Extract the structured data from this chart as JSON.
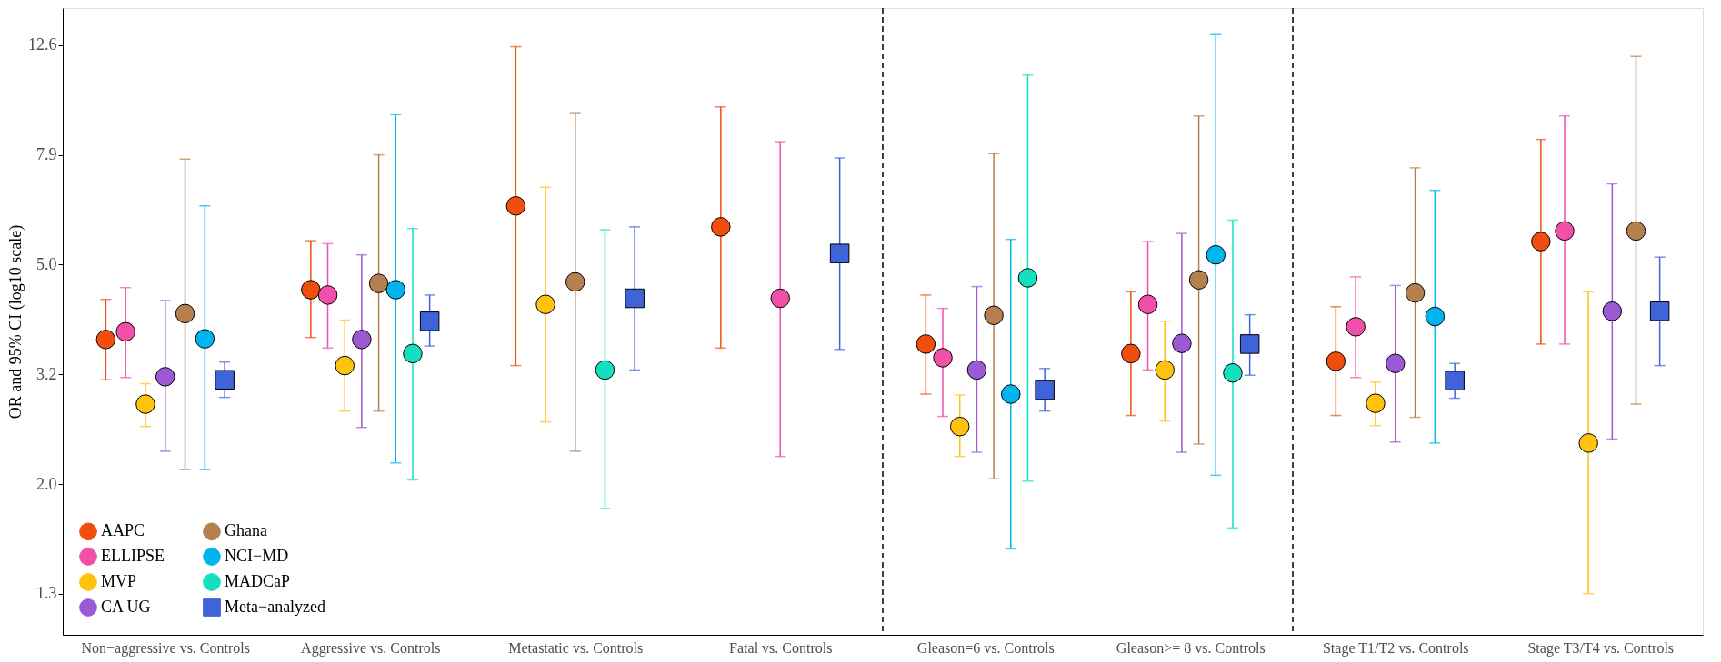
{
  "chart_data": {
    "type": "scatter",
    "ylabel": "OR and 95% CI (log10 scale)",
    "log": "y",
    "grid": false,
    "legend": "bottom left",
    "marker": "circle",
    "categories": [
      "Non−aggressive vs. Controls",
      "Aggressive vs. Controls",
      "Metastatic vs. Controls",
      "Fatal vs. Controls",
      "Gleason=6 vs. Controls",
      "Gleason>= 8 vs. Controls",
      "Stage T1/T2 vs. Controls",
      "Stage T3/T4 vs. Controls"
    ],
    "ylim": [
      1.06,
      14.7
    ],
    "yticks": [
      {
        "value": 1.2589,
        "label": "1.3"
      },
      {
        "value": 1.9953,
        "label": "2.0"
      },
      {
        "value": 3.1623,
        "label": "3.2"
      },
      {
        "value": 5.0119,
        "label": "5.0"
      },
      {
        "value": 7.9433,
        "label": "7.9"
      },
      {
        "value": 12.589,
        "label": "12.6"
      }
    ],
    "series": [
      {
        "name": "AAPC",
        "color": "#f04e0f",
        "values": [
          3.66,
          4.51,
          6.41,
          5.87,
          3.59,
          3.45,
          3.34,
          5.52
        ],
        "errors": [
          [
            3.09,
            4.33
          ],
          [
            3.69,
            5.54
          ],
          [
            3.28,
            12.5
          ],
          [
            3.53,
            9.71
          ],
          [
            2.91,
            4.41
          ],
          [
            2.66,
            4.47
          ],
          [
            2.66,
            4.2
          ],
          [
            3.59,
            8.47
          ]
        ]
      },
      {
        "name": "ELLIPSE",
        "color": "#f050a8",
        "values": [
          3.78,
          4.41,
          null,
          4.35,
          3.39,
          4.24,
          3.86,
          5.77
        ],
        "errors": [
          [
            3.12,
            4.55
          ],
          [
            3.53,
            5.47
          ],
          null,
          [
            2.24,
            8.39
          ],
          [
            2.65,
            4.17
          ],
          [
            3.22,
            5.52
          ],
          [
            3.12,
            4.76
          ],
          [
            3.59,
            9.35
          ]
        ]
      },
      {
        "name": "MVP",
        "color": "#ffc20e",
        "values": [
          2.79,
          3.28,
          4.24,
          null,
          2.54,
          3.22,
          2.8,
          2.37
        ],
        "errors": [
          [
            2.54,
            3.04
          ],
          [
            2.71,
            3.97
          ],
          [
            2.59,
            6.93
          ],
          null,
          [
            2.24,
            2.9
          ],
          [
            2.6,
            3.95
          ],
          [
            2.55,
            3.06
          ],
          [
            1.26,
            4.47
          ]
        ]
      },
      {
        "name": "CA UG",
        "color": "#9b59d6",
        "values": [
          3.13,
          3.66,
          null,
          null,
          3.22,
          3.6,
          3.31,
          4.12
        ],
        "errors": [
          [
            2.29,
            4.31
          ],
          [
            2.53,
            5.22
          ],
          null,
          null,
          [
            2.28,
            4.57
          ],
          [
            2.28,
            5.71
          ],
          [
            2.38,
            4.59
          ],
          [
            2.41,
            7.03
          ]
        ]
      },
      {
        "name": "Ghana",
        "color": "#b5804f",
        "values": [
          4.08,
          4.63,
          4.66,
          null,
          4.05,
          4.7,
          4.45,
          5.77
        ],
        "errors": [
          [
            2.12,
            7.8
          ],
          [
            2.71,
            7.94
          ],
          [
            2.29,
            9.48
          ],
          null,
          [
            2.04,
            7.98
          ],
          [
            2.36,
            9.35
          ],
          [
            2.64,
            7.52
          ],
          [
            2.79,
            12.0
          ]
        ]
      },
      {
        "name": "NCI−MD",
        "color": "#00b4f0",
        "values": [
          3.67,
          4.51,
          null,
          null,
          2.91,
          5.22,
          4.03,
          null
        ],
        "errors": [
          [
            2.12,
            6.41
          ],
          [
            2.18,
            9.4
          ],
          null,
          null,
          [
            1.52,
            5.57
          ],
          [
            2.07,
            13.2
          ],
          [
            2.37,
            6.84
          ],
          null
        ]
      },
      {
        "name": "MADCaP",
        "color": "#14e0c0",
        "values": [
          null,
          3.45,
          3.22,
          null,
          4.74,
          3.18,
          null,
          null
        ],
        "errors": [
          null,
          [
            2.03,
            5.83
          ],
          [
            1.8,
            5.8
          ],
          null,
          [
            2.02,
            11.1
          ],
          [
            1.66,
            6.04
          ],
          null,
          null
        ]
      },
      {
        "name": "Meta−analyzed",
        "color": "#3f63d8",
        "marker": "square",
        "values": [
          3.09,
          3.95,
          4.35,
          5.25,
          2.96,
          3.59,
          3.08,
          4.12
        ],
        "errors": [
          [
            2.87,
            3.33
          ],
          [
            3.56,
            4.41
          ],
          [
            3.22,
            5.87
          ],
          [
            3.51,
            7.84
          ],
          [
            2.71,
            3.24
          ],
          [
            3.15,
            4.06
          ],
          [
            2.86,
            3.31
          ],
          [
            3.28,
            5.17
          ]
        ]
      }
    ]
  }
}
